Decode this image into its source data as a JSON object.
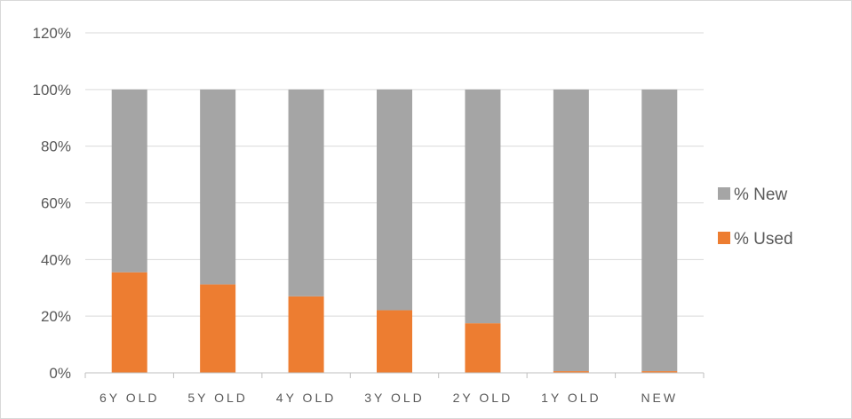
{
  "chart_data": {
    "type": "bar",
    "stacked": true,
    "categories": [
      "6Y OLD",
      "5Y OLD",
      "4Y OLD",
      "3Y OLD",
      "2Y OLD",
      "1Y OLD",
      "NEW"
    ],
    "series": [
      {
        "name": "% Used",
        "color": "#ED7D31",
        "values": [
          35.5,
          31.2,
          27.0,
          22.1,
          17.5,
          0.6,
          0.6
        ]
      },
      {
        "name": "% New",
        "color": "#A5A5A5",
        "values": [
          64.5,
          68.8,
          73.0,
          77.9,
          82.5,
          99.4,
          99.4
        ]
      }
    ],
    "yticks": [
      "0%",
      "20%",
      "40%",
      "60%",
      "80%",
      "100%",
      "120%"
    ],
    "ylim": [
      0,
      120
    ],
    "grid": true,
    "legend": {
      "position": "right",
      "entries": [
        {
          "label": "% New",
          "color": "#A5A5A5"
        },
        {
          "label": "% Used",
          "color": "#ED7D31"
        }
      ]
    }
  }
}
